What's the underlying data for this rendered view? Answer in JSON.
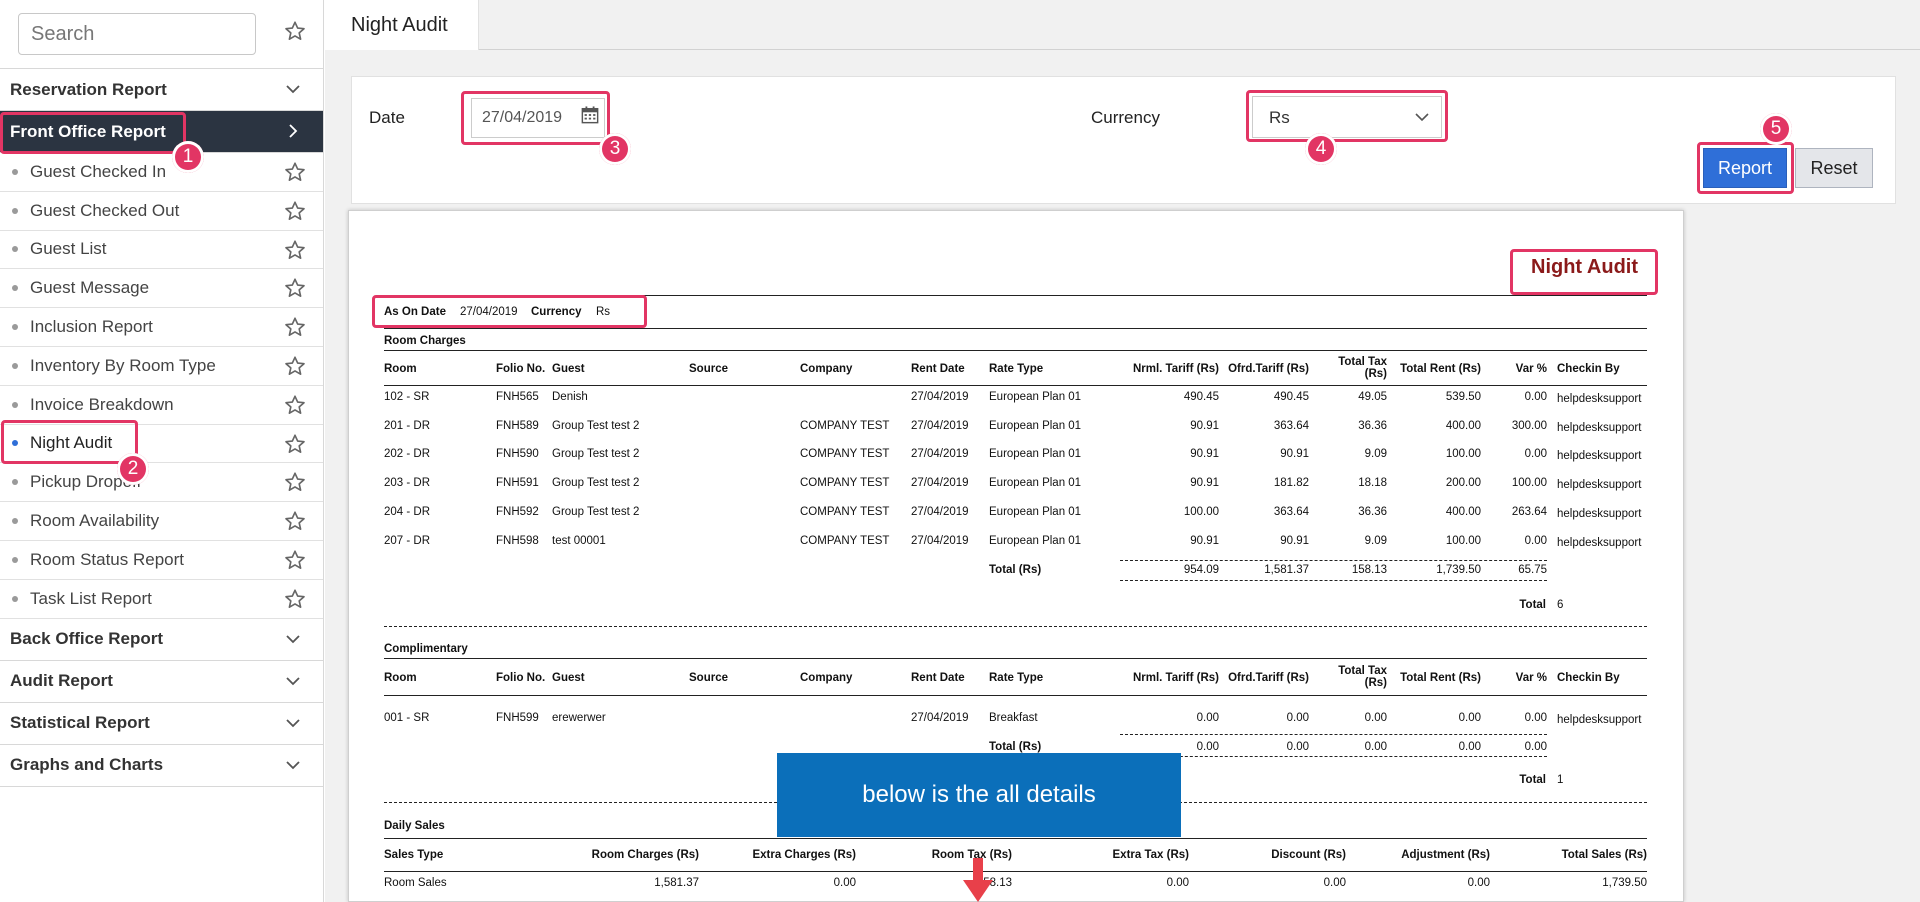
{
  "sidebar": {
    "search_placeholder": "Search",
    "sections_top": [
      {
        "label": "Reservation Report"
      },
      {
        "label": "Front Office Report"
      }
    ],
    "items": [
      {
        "label": "Guest Checked In"
      },
      {
        "label": "Guest Checked Out"
      },
      {
        "label": "Guest List"
      },
      {
        "label": "Guest Message"
      },
      {
        "label": "Inclusion Report"
      },
      {
        "label": "Inventory By Room Type"
      },
      {
        "label": "Invoice Breakdown"
      },
      {
        "label": "Night Audit"
      },
      {
        "label": "Pickup Dropoff"
      },
      {
        "label": "Room Availability"
      },
      {
        "label": "Room Status Report"
      },
      {
        "label": "Task List Report"
      }
    ],
    "sections_bottom": [
      {
        "label": "Back Office Report"
      },
      {
        "label": "Audit Report"
      },
      {
        "label": "Statistical Report"
      },
      {
        "label": "Graphs and Charts"
      }
    ]
  },
  "tab": {
    "label": "Night Audit"
  },
  "filter": {
    "date_label": "Date",
    "date_value": "27/04/2019",
    "currency_label": "Currency",
    "currency_value": "Rs",
    "report_button": "Report",
    "reset_button": "Reset"
  },
  "report": {
    "title": "Night Audit",
    "as_on_date_label": "As On Date",
    "as_on_date": "27/04/2019",
    "currency_label": "Currency",
    "currency": "Rs",
    "room_charges_title": "Room Charges",
    "complimentary_title": "Complimentary",
    "daily_sales_title": "Daily Sales",
    "columns": [
      "Room",
      "Folio No.",
      "Guest",
      "Source",
      "Company",
      "Rent Date",
      "Rate Type",
      "Nrml. Tariff (Rs)",
      "Ofrd.Tariff (Rs)",
      "Total Tax",
      "(Rs)",
      "Total Rent (Rs)",
      "Var %",
      "Checkin By"
    ],
    "room_rows": [
      [
        "102 - SR",
        "FNH565",
        "Denish",
        "",
        "",
        "27/04/2019",
        "European Plan 01",
        "490.45",
        "490.45",
        "49.05",
        "539.50",
        "0.00",
        "helpdesksupport"
      ],
      [
        "201 - DR",
        "FNH589",
        "Group Test test 2",
        "",
        "COMPANY TEST",
        "27/04/2019",
        "European Plan 01",
        "90.91",
        "363.64",
        "36.36",
        "400.00",
        "300.00",
        "helpdesksupport"
      ],
      [
        "202 - DR",
        "FNH590",
        "Group Test test 2",
        "",
        "COMPANY TEST",
        "27/04/2019",
        "European Plan 01",
        "90.91",
        "90.91",
        "9.09",
        "100.00",
        "0.00",
        "helpdesksupport"
      ],
      [
        "203 - DR",
        "FNH591",
        "Group Test test 2",
        "",
        "COMPANY TEST",
        "27/04/2019",
        "European Plan 01",
        "90.91",
        "181.82",
        "18.18",
        "200.00",
        "100.00",
        "helpdesksupport"
      ],
      [
        "204 - DR",
        "FNH592",
        "Group Test test 2",
        "",
        "COMPANY TEST",
        "27/04/2019",
        "European Plan 01",
        "100.00",
        "363.64",
        "36.36",
        "400.00",
        "263.64",
        "helpdesksupport"
      ],
      [
        "207 - DR",
        "FNH598",
        "test 00001",
        "",
        "COMPANY TEST",
        "27/04/2019",
        "European Plan 01",
        "90.91",
        "90.91",
        "9.09",
        "100.00",
        "0.00",
        "helpdesksupport"
      ]
    ],
    "room_total": {
      "label": "Total (Rs)",
      "values": [
        "954.09",
        "1,581.37",
        "158.13",
        "1,739.50",
        "65.75"
      ],
      "count_label": "Total",
      "count": "6"
    },
    "comp_rows": [
      [
        "001 - SR",
        "FNH599",
        "erewerwer",
        "",
        "",
        "27/04/2019",
        "Breakfast",
        "0.00",
        "0.00",
        "0.00",
        "0.00",
        "0.00",
        "helpdesksupport"
      ]
    ],
    "comp_total": {
      "label": "Total (Rs)",
      "values": [
        "0.00",
        "0.00",
        "0.00",
        "0.00",
        "0.00"
      ],
      "count_label": "Total",
      "count": "1"
    },
    "sales_columns": [
      "Sales Type",
      "Room Charges (Rs)",
      "Extra Charges (Rs)",
      "Room Tax (Rs)",
      "Extra Tax (Rs)",
      "Discount (Rs)",
      "Adjustment (Rs)",
      "Total Sales (Rs)"
    ],
    "sales_rows": [
      [
        "Room Sales",
        "1,581.37",
        "0.00",
        "158.13",
        "0.00",
        "0.00",
        "0.00",
        "1,739.50"
      ]
    ]
  },
  "annotations": {
    "badges": [
      "1",
      "2",
      "3",
      "4",
      "5"
    ],
    "tooltip": "below is the all details",
    "highlight_color": "#e23564",
    "tooltip_color": "#0b6fba"
  }
}
